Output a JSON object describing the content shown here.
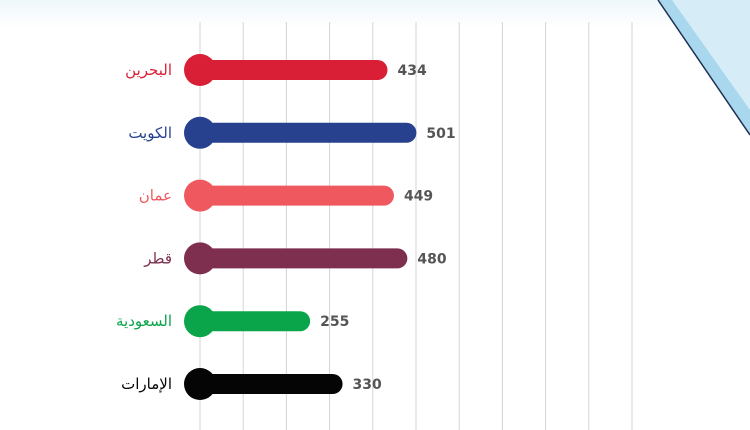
{
  "chart_data": {
    "type": "bar",
    "orientation": "horizontal",
    "title": "",
    "xlabel": "",
    "ylabel": "",
    "xlim": [
      0,
      1000
    ],
    "grid": true,
    "legend": "none",
    "categories": [
      "البحرين",
      "الكويت",
      "عمان",
      "قطر",
      "السعودية",
      "الإمارات"
    ],
    "values": [
      434,
      501,
      449,
      480,
      255,
      330
    ],
    "value_labels": [
      "434",
      "501",
      "449",
      "480",
      "255",
      "330"
    ],
    "colors": [
      "#d81f35",
      "#27418f",
      "#f0585f",
      "#7e2f4f",
      "#0aa54a",
      "#050505"
    ]
  }
}
